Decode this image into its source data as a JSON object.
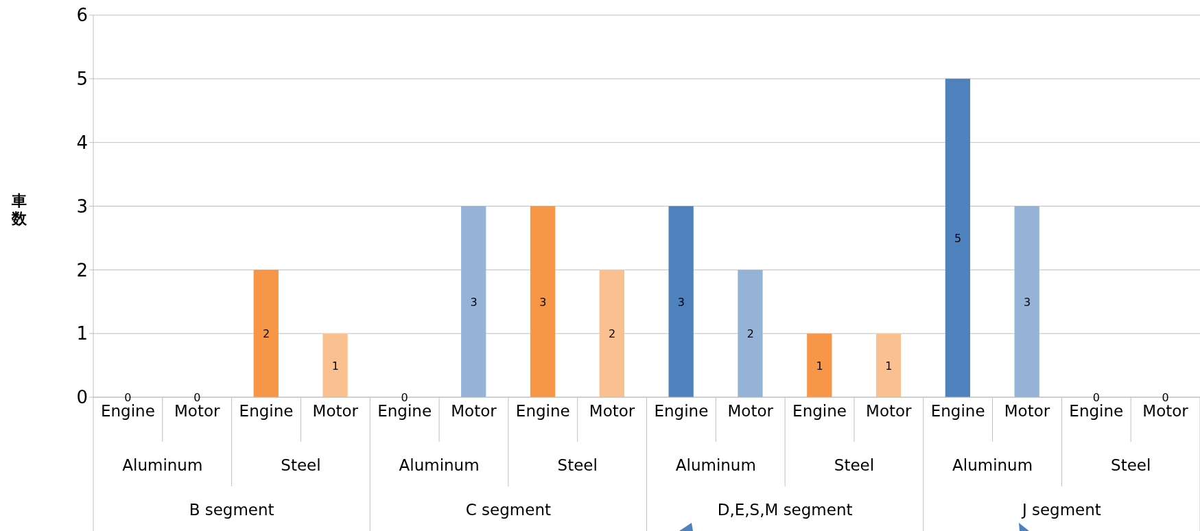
{
  "chart_data": {
    "type": "bar",
    "ylabel": "車数",
    "categories": [
      "Engine",
      "Motor",
      "Engine",
      "Motor",
      "Engine",
      "Motor",
      "Engine",
      "Motor",
      "Engine",
      "Motor",
      "Engine",
      "Motor",
      "Engine",
      "Motor",
      "Engine",
      "Motor"
    ],
    "values": [
      0,
      0,
      2,
      1,
      0,
      3,
      3,
      2,
      3,
      2,
      1,
      1,
      5,
      3,
      0,
      0
    ],
    "colors": [
      "#4f81bd",
      "#95b3d7",
      "#f79646",
      "#fac090",
      "#4f81bd",
      "#95b3d7",
      "#f79646",
      "#fac090",
      "#4f81bd",
      "#95b3d7",
      "#f79646",
      "#fac090",
      "#4f81bd",
      "#95b3d7",
      "#f79646",
      "#fac090"
    ],
    "annotations": [
      "Aluminum",
      "Steel",
      "Aluminum",
      "Steel",
      "Aluminum",
      "Steel",
      "Aluminum",
      "Steel",
      "B segment",
      "C segment",
      "D,E,S,M segment",
      "J segment"
    ],
    "ylim": [
      0,
      6
    ],
    "yticks": [
      0,
      1,
      2,
      3,
      4,
      5,
      6
    ],
    "grid": "y",
    "data_labels": true
  }
}
